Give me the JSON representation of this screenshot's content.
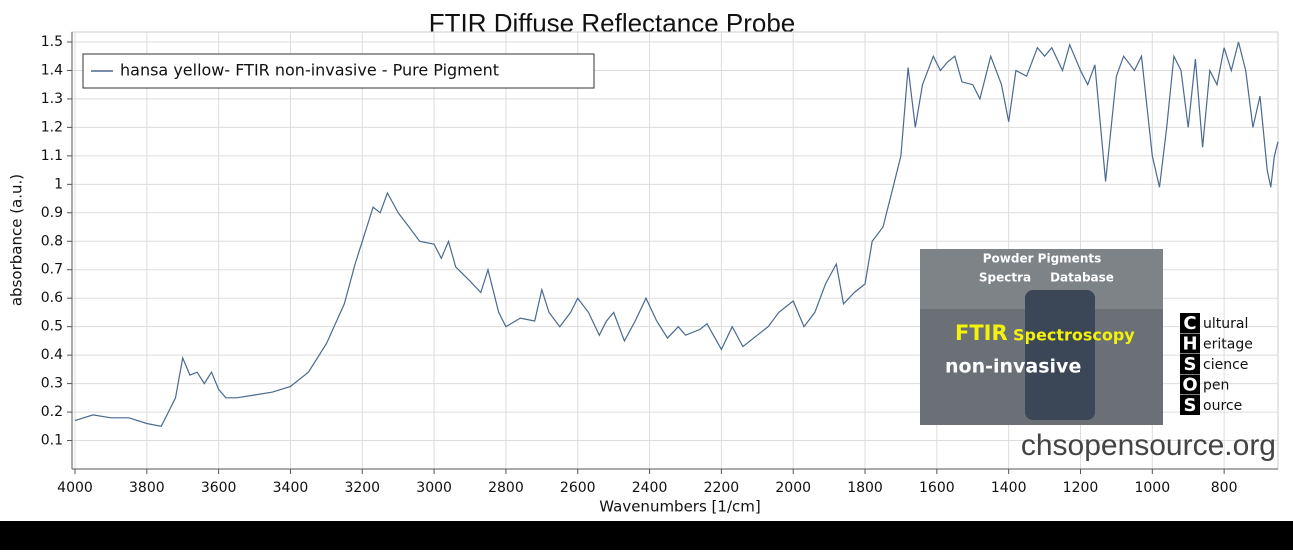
{
  "chart_data": {
    "type": "line",
    "title": "FTIR Diffuse Reflectance Probe",
    "x_label": "Wavenumbers [1/cm]",
    "y_label": "absorbance (a.u.)",
    "xlim": [
      4000,
      650
    ],
    "ylim": [
      0,
      1.5
    ],
    "xticks": [
      4000,
      3800,
      3600,
      3400,
      3200,
      3000,
      2800,
      2600,
      2400,
      2200,
      2000,
      1800,
      1600,
      1400,
      1200,
      1000,
      800
    ],
    "yticks": [
      0.1,
      0.2,
      0.3,
      0.4,
      0.5,
      0.6,
      0.7,
      0.8,
      0.9,
      1,
      1.1,
      1.2,
      1.3,
      1.4,
      1.5
    ],
    "grid": true,
    "legend": "upper left",
    "series": [
      {
        "name": "hansa yellow- FTIR non-invasive - Pure Pigment",
        "color": "#4a6a8f",
        "x": [
          4000,
          3950,
          3900,
          3850,
          3800,
          3760,
          3740,
          3720,
          3700,
          3680,
          3660,
          3640,
          3620,
          3600,
          3580,
          3550,
          3500,
          3450,
          3400,
          3350,
          3300,
          3250,
          3220,
          3200,
          3170,
          3150,
          3130,
          3100,
          3070,
          3040,
          3000,
          2980,
          2960,
          2940,
          2900,
          2870,
          2850,
          2820,
          2800,
          2760,
          2720,
          2700,
          2680,
          2650,
          2620,
          2600,
          2570,
          2540,
          2520,
          2500,
          2470,
          2440,
          2410,
          2380,
          2350,
          2320,
          2300,
          2260,
          2240,
          2200,
          2170,
          2140,
          2100,
          2070,
          2040,
          2000,
          1970,
          1940,
          1910,
          1880,
          1860,
          1830,
          1800,
          1780,
          1750,
          1720,
          1700,
          1680,
          1660,
          1640,
          1610,
          1590,
          1570,
          1550,
          1530,
          1500,
          1480,
          1450,
          1420,
          1400,
          1380,
          1350,
          1320,
          1300,
          1280,
          1250,
          1230,
          1200,
          1180,
          1160,
          1130,
          1100,
          1080,
          1050,
          1030,
          1000,
          980,
          960,
          940,
          920,
          900,
          880,
          860,
          840,
          820,
          800,
          780,
          760,
          740,
          720,
          700,
          680,
          670,
          660,
          650
        ],
        "values": [
          0.17,
          0.19,
          0.18,
          0.18,
          0.16,
          0.15,
          0.2,
          0.25,
          0.39,
          0.33,
          0.34,
          0.3,
          0.34,
          0.28,
          0.25,
          0.25,
          0.26,
          0.27,
          0.29,
          0.34,
          0.44,
          0.58,
          0.72,
          0.8,
          0.92,
          0.9,
          0.97,
          0.9,
          0.85,
          0.8,
          0.79,
          0.74,
          0.8,
          0.71,
          0.66,
          0.62,
          0.7,
          0.55,
          0.5,
          0.53,
          0.52,
          0.63,
          0.55,
          0.5,
          0.55,
          0.6,
          0.55,
          0.47,
          0.52,
          0.55,
          0.45,
          0.52,
          0.6,
          0.52,
          0.46,
          0.5,
          0.47,
          0.49,
          0.51,
          0.42,
          0.5,
          0.43,
          0.47,
          0.5,
          0.55,
          0.59,
          0.5,
          0.55,
          0.65,
          0.72,
          0.58,
          0.62,
          0.65,
          0.8,
          0.85,
          1.0,
          1.1,
          1.41,
          1.2,
          1.35,
          1.45,
          1.4,
          1.43,
          1.45,
          1.36,
          1.35,
          1.3,
          1.45,
          1.35,
          1.22,
          1.4,
          1.38,
          1.48,
          1.45,
          1.48,
          1.4,
          1.49,
          1.4,
          1.35,
          1.42,
          1.01,
          1.38,
          1.45,
          1.4,
          1.45,
          1.1,
          0.99,
          1.2,
          1.45,
          1.4,
          1.2,
          1.44,
          1.13,
          1.4,
          1.35,
          1.48,
          1.4,
          1.5,
          1.4,
          1.2,
          1.31,
          1.05,
          0.99,
          1.1,
          1.15
        ]
      }
    ],
    "annotations": {
      "logo_line1": "Powder Pigments",
      "logo_line2a": "Spectra",
      "logo_line2b": "Database",
      "logo_ftir": "FTIR",
      "logo_spec": "Spectroscopy",
      "logo_noninv": "non-invasive",
      "logo_letters": [
        "C",
        "H",
        "S",
        "O",
        "S"
      ],
      "logo_words": [
        "ultural",
        "eritage",
        "cience",
        "pen",
        "ource"
      ],
      "website": "chsopensource.org"
    }
  }
}
